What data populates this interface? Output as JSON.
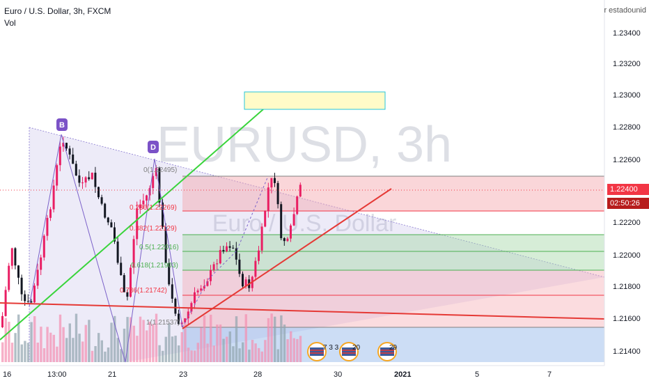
{
  "header": {
    "title": "Euro / U.S. Dollar, 3h, FXCM",
    "indicator": "Vol",
    "compare_label": "r estadounid"
  },
  "watermark": {
    "big": "EURUSD, 3h",
    "small": "Euro / U.S. Dollar"
  },
  "price_axis": {
    "ticks": [
      "1.23400",
      "1.23200",
      "1.23000",
      "1.22800",
      "1.22600",
      "1.22200",
      "1.22000",
      "1.21800",
      "1.21600",
      "1.21400"
    ],
    "current_price": "1.22400",
    "countdown": "02:50:26"
  },
  "time_axis": {
    "ticks": [
      "16",
      "13:00",
      "21",
      "23",
      "28",
      "30",
      "2021",
      "5",
      "7"
    ]
  },
  "pattern_points": [
    "B",
    "D"
  ],
  "fib_levels": [
    "0(1.22495)",
    "0.236(1.22269)",
    "0.382(1.22129)",
    "0.5(1.22016)",
    "0.618(1.21903)",
    "0.786(1.21742)",
    "1(1.21537)"
  ],
  "events": [
    "7 3 3",
    "20",
    "29"
  ],
  "colors": {
    "up": "#e91e63",
    "down": "#131722",
    "price_tag": "#f23645",
    "countdown_tag": "#d32f2f"
  }
}
